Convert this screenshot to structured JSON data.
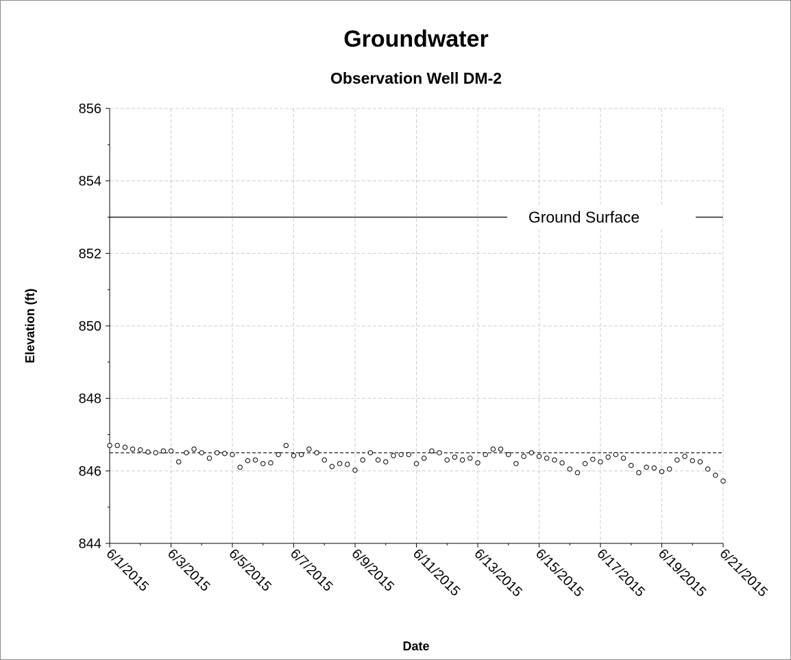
{
  "chart_data": {
    "type": "scatter",
    "title": "Groundwater",
    "subtitle": "Observation Well DM-2",
    "x_label": "Date",
    "y_label": "Elevation (ft)",
    "xlim": [
      42156,
      42176
    ],
    "xticks": [
      {
        "value": 42156,
        "label": "6/1/2015"
      },
      {
        "value": 42158,
        "label": "6/3/2015"
      },
      {
        "value": 42160,
        "label": "6/5/2015"
      },
      {
        "value": 42162,
        "label": "6/7/2015"
      },
      {
        "value": 42164,
        "label": "6/9/2015"
      },
      {
        "value": 42166,
        "label": "6/11/2015"
      },
      {
        "value": 42168,
        "label": "6/13/2015"
      },
      {
        "value": 42170,
        "label": "6/15/2015"
      },
      {
        "value": 42172,
        "label": "6/17/2015"
      },
      {
        "value": 42174,
        "label": "6/19/2015"
      },
      {
        "value": 42176,
        "label": "6/21/2015"
      }
    ],
    "xminorticks": [
      42157,
      42159,
      42161,
      42163,
      42165,
      42167,
      42169,
      42171,
      42173,
      42175
    ],
    "ylim": [
      844,
      856
    ],
    "yticks": [
      844,
      846,
      848,
      850,
      852,
      854,
      856
    ],
    "yminorticks": [
      845,
      847,
      849,
      851,
      853,
      855
    ],
    "grid": true,
    "reference_lines": [
      {
        "value": 853,
        "label": "Ground Surface",
        "style": "solid"
      },
      {
        "value": 846.5,
        "style": "dashed"
      }
    ],
    "series": [
      {
        "color": "#000000",
        "x": [
          42156,
          42156.25,
          42156.5,
          42156.75,
          42157,
          42157.25,
          42157.5,
          42157.75,
          42158,
          42158.25,
          42158.5,
          42158.75,
          42159,
          42159.25,
          42159.5,
          42159.75,
          42160,
          42160.25,
          42160.5,
          42160.75,
          42161,
          42161.25,
          42161.5,
          42161.75,
          42162,
          42162.25,
          42162.5,
          42162.75,
          42163,
          42163.25,
          42163.5,
          42163.75,
          42164,
          42164.25,
          42164.5,
          42164.75,
          42165,
          42165.25,
          42165.5,
          42165.75,
          42166,
          42166.25,
          42166.5,
          42166.75,
          42167,
          42167.25,
          42167.5,
          42167.75,
          42168,
          42168.25,
          42168.5,
          42168.75,
          42169,
          42169.25,
          42169.5,
          42169.75,
          42170,
          42170.25,
          42170.5,
          42170.75,
          42171,
          42171.25,
          42171.5,
          42171.75,
          42172,
          42172.25,
          42172.5,
          42172.75,
          42173,
          42173.25,
          42173.5,
          42173.75,
          42174,
          42174.25,
          42174.5,
          42174.75,
          42175,
          42175.25,
          42175.5,
          42175.75,
          42176
        ],
        "values": [
          846.7,
          846.7,
          846.65,
          846.6,
          846.58,
          846.52,
          846.5,
          846.55,
          846.55,
          846.25,
          846.5,
          846.6,
          846.5,
          846.35,
          846.5,
          846.48,
          846.45,
          846.1,
          846.28,
          846.3,
          846.2,
          846.22,
          846.45,
          846.7,
          846.42,
          846.45,
          846.6,
          846.5,
          846.3,
          846.12,
          846.2,
          846.18,
          846.02,
          846.3,
          846.5,
          846.3,
          846.25,
          846.42,
          846.45,
          846.45,
          846.2,
          846.35,
          846.55,
          846.5,
          846.3,
          846.38,
          846.3,
          846.35,
          846.22,
          846.45,
          846.6,
          846.6,
          846.45,
          846.2,
          846.4,
          846.5,
          846.4,
          846.35,
          846.3,
          846.22,
          846.05,
          845.95,
          846.2,
          846.32,
          846.25,
          846.38,
          846.45,
          846.35,
          846.15,
          845.95,
          846.1,
          846.08,
          845.98,
          846.05,
          846.3,
          846.4,
          846.28,
          846.25,
          846.05,
          845.88,
          845.72
        ]
      }
    ]
  }
}
